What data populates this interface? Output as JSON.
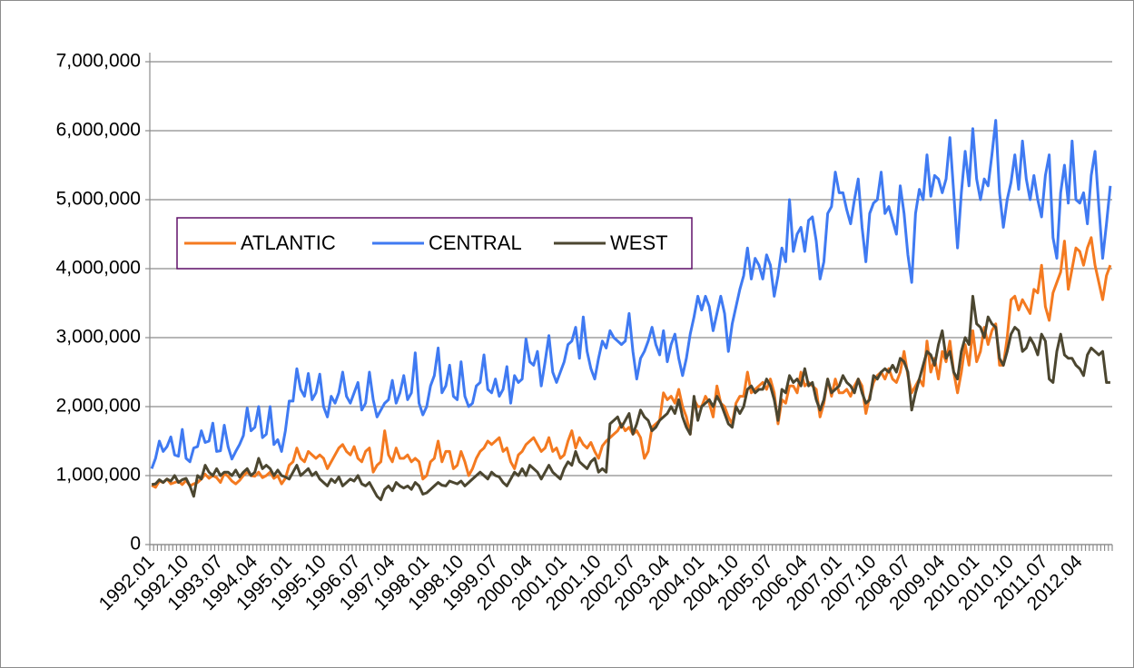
{
  "chart_data": {
    "type": "line",
    "categories": [
      "1992.01",
      null,
      null,
      null,
      null,
      null,
      null,
      null,
      null,
      "1992.10",
      null,
      null,
      null,
      null,
      null,
      null,
      null,
      null,
      "1993.07",
      null,
      null,
      null,
      null,
      null,
      null,
      null,
      null,
      "1994.04",
      null,
      null,
      null,
      null,
      null,
      null,
      null,
      null,
      "1995.01",
      null,
      null,
      null,
      null,
      null,
      null,
      null,
      null,
      "1995.10",
      null,
      null,
      null,
      null,
      null,
      null,
      null,
      null,
      "1996.07",
      null,
      null,
      null,
      null,
      null,
      null,
      null,
      null,
      "1997.04",
      null,
      null,
      null,
      null,
      null,
      null,
      null,
      null,
      "1998.01",
      null,
      null,
      null,
      null,
      null,
      null,
      null,
      null,
      "1998.10",
      null,
      null,
      null,
      null,
      null,
      null,
      null,
      null,
      "1999.07",
      null,
      null,
      null,
      null,
      null,
      null,
      null,
      null,
      "2000.04",
      null,
      null,
      null,
      null,
      null,
      null,
      null,
      null,
      "2001.01",
      null,
      null,
      null,
      null,
      null,
      null,
      null,
      null,
      "2001.10",
      null,
      null,
      null,
      null,
      null,
      null,
      null,
      null,
      "2002.07",
      null,
      null,
      null,
      null,
      null,
      null,
      null,
      null,
      "2003.04",
      null,
      null,
      null,
      null,
      null,
      null,
      null,
      null,
      "2004.01",
      null,
      null,
      null,
      null,
      null,
      null,
      null,
      null,
      "2004.10",
      null,
      null,
      null,
      null,
      null,
      null,
      null,
      null,
      "2005.07",
      null,
      null,
      null,
      null,
      null,
      null,
      null,
      null,
      "2006.04",
      null,
      null,
      null,
      null,
      null,
      null,
      null,
      null,
      "2007.01",
      null,
      null,
      null,
      null,
      null,
      null,
      null,
      null,
      "2007.10",
      null,
      null,
      null,
      null,
      null,
      null,
      null,
      null,
      "2008.07",
      null,
      null,
      null,
      null,
      null,
      null,
      null,
      null,
      "2009.04",
      null,
      null,
      null,
      null,
      null,
      null,
      null,
      null,
      "2010.01",
      null,
      null,
      null,
      null,
      null,
      null,
      null,
      null,
      "2010.10",
      null,
      null,
      null,
      null,
      null,
      null,
      null,
      null,
      "2011.07",
      null,
      null,
      null,
      null,
      null,
      null,
      null,
      null,
      "2012.04",
      null,
      null,
      null,
      null,
      null,
      null,
      null,
      null
    ],
    "series": [
      {
        "name": "ATLANTIC",
        "color": "#f47a20",
        "values": [
          860000,
          830000,
          920000,
          900000,
          950000,
          880000,
          900000,
          920000,
          870000,
          930000,
          850000,
          880000,
          900000,
          950000,
          1020000,
          960000,
          1000000,
          970000,
          900000,
          1030000,
          990000,
          920000,
          880000,
          930000,
          1000000,
          1050000,
          1000000,
          990000,
          1050000,
          970000,
          1000000,
          1050000,
          960000,
          1000000,
          880000,
          960000,
          1150000,
          1200000,
          1400000,
          1250000,
          1200000,
          1350000,
          1300000,
          1250000,
          1300000,
          1250000,
          1100000,
          1200000,
          1300000,
          1400000,
          1450000,
          1350000,
          1300000,
          1420000,
          1250000,
          1200000,
          1350000,
          1400000,
          1050000,
          1150000,
          1200000,
          1650000,
          1300000,
          1200000,
          1400000,
          1250000,
          1250000,
          1300000,
          1200000,
          1250000,
          1200000,
          950000,
          1000000,
          1200000,
          1250000,
          1500000,
          1200000,
          1350000,
          1350000,
          1100000,
          1150000,
          1350000,
          1200000,
          1000000,
          1100000,
          1250000,
          1350000,
          1400000,
          1500000,
          1450000,
          1500000,
          1550000,
          1350000,
          1400000,
          1200000,
          1100000,
          1300000,
          1350000,
          1450000,
          1500000,
          1550000,
          1450000,
          1350000,
          1400000,
          1550000,
          1350000,
          1400000,
          1250000,
          1300000,
          1500000,
          1650000,
          1400000,
          1550000,
          1450000,
          1400000,
          1480000,
          1350000,
          1250000,
          1430000,
          1500000,
          1550000,
          1600000,
          1650000,
          1750000,
          1650000,
          1700000,
          1600000,
          1650000,
          1550000,
          1250000,
          1350000,
          1700000,
          1750000,
          1800000,
          2200000,
          2100000,
          2150000,
          2050000,
          2250000,
          2000000,
          1850000,
          1600000,
          2100000,
          2000000,
          2000000,
          2150000,
          2050000,
          1850000,
          2300000,
          2050000,
          2000000,
          1850000,
          1750000,
          2050000,
          2150000,
          2150000,
          2500000,
          2200000,
          2250000,
          2300000,
          2350000,
          2250000,
          2400000,
          2200000,
          1750000,
          2100000,
          2050000,
          2300000,
          2300000,
          2200000,
          2500000,
          2300000,
          2350000,
          2300000,
          2250000,
          1850000,
          2050000,
          2400000,
          2150000,
          2400000,
          2200000,
          2200000,
          2250000,
          2150000,
          2300000,
          2400000,
          2300000,
          1900000,
          2150000,
          2350000,
          2450000,
          2500000,
          2400000,
          2550000,
          2400000,
          2350000,
          2500000,
          2800000,
          2450000,
          2200000,
          2300000,
          2400000,
          2300000,
          2950000,
          2500000,
          2700000,
          2400000,
          2800000,
          2650000,
          2950000,
          2500000,
          2200000,
          2500000,
          2900000,
          2600000,
          3100000,
          2650000,
          2800000,
          3150000,
          2900000,
          3100000,
          3200000,
          2600000,
          2600000,
          3000000,
          3550000,
          3600000,
          3400000,
          3550000,
          3450000,
          3350000,
          3700000,
          3650000,
          4050000,
          3450000,
          3250000,
          3650000,
          3800000,
          3950000,
          4400000,
          3700000,
          4000000,
          4300000,
          4250000,
          4050000,
          4300000,
          4450000,
          4050000,
          3800000,
          3550000,
          3900000,
          4050000
        ]
      },
      {
        "name": "CENTRAL",
        "color": "#3f7af2",
        "values": [
          1100000,
          1250000,
          1500000,
          1350000,
          1420000,
          1560000,
          1300000,
          1280000,
          1670000,
          1250000,
          1200000,
          1400000,
          1420000,
          1650000,
          1480000,
          1500000,
          1760000,
          1350000,
          1360000,
          1730000,
          1420000,
          1240000,
          1350000,
          1450000,
          1580000,
          1980000,
          1650000,
          1700000,
          2000000,
          1550000,
          1600000,
          2000000,
          1450000,
          1520000,
          1350000,
          1650000,
          2080000,
          2080000,
          2550000,
          2250000,
          2150000,
          2480000,
          2100000,
          2200000,
          2470000,
          2000000,
          1850000,
          2150000,
          2050000,
          2200000,
          2500000,
          2150000,
          2050000,
          2200000,
          2350000,
          1950000,
          2050000,
          2500000,
          2100000,
          1850000,
          1950000,
          2050000,
          2100000,
          2380000,
          2050000,
          2200000,
          2450000,
          2100000,
          2200000,
          2780000,
          2050000,
          1880000,
          2000000,
          2300000,
          2450000,
          2850000,
          2200000,
          2300000,
          2600000,
          2150000,
          2100000,
          2650000,
          2150000,
          2000000,
          2050000,
          2300000,
          2350000,
          2750000,
          2250000,
          2200000,
          2400000,
          2150000,
          2250000,
          2580000,
          2050000,
          2450000,
          2350000,
          2400000,
          2980000,
          2650000,
          2600000,
          2800000,
          2300000,
          2650000,
          3030000,
          2500000,
          2350000,
          2500000,
          2650000,
          2900000,
          2950000,
          3150000,
          2700000,
          3300000,
          2800000,
          2550000,
          2400000,
          2700000,
          2950000,
          2850000,
          3100000,
          3000000,
          2950000,
          2900000,
          2950000,
          3350000,
          2800000,
          2400000,
          2700000,
          2800000,
          2950000,
          3150000,
          2900000,
          2750000,
          3100000,
          2650000,
          2900000,
          3050000,
          2700000,
          2450000,
          2700000,
          3050000,
          3300000,
          3600000,
          3400000,
          3600000,
          3450000,
          3100000,
          3350000,
          3600000,
          3350000,
          2800000,
          3200000,
          3450000,
          3700000,
          3900000,
          4300000,
          3850000,
          4150000,
          4050000,
          3850000,
          4200000,
          4050000,
          3600000,
          3900000,
          4300000,
          4100000,
          5000000,
          4250000,
          4500000,
          4600000,
          4250000,
          4700000,
          4750000,
          4400000,
          3850000,
          4100000,
          4800000,
          4900000,
          5400000,
          5100000,
          5100000,
          4850000,
          4650000,
          5000000,
          5300000,
          4600000,
          4100000,
          4800000,
          4950000,
          5000000,
          5400000,
          4800000,
          4900000,
          4700000,
          4500000,
          5200000,
          4800000,
          4200000,
          3800000,
          4800000,
          5150000,
          5000000,
          5650000,
          5050000,
          5350000,
          5300000,
          5100000,
          5300000,
          5900000,
          5100000,
          4300000,
          5100000,
          5700000,
          5200000,
          6030000,
          5300000,
          5000000,
          5300000,
          5200000,
          5650000,
          6150000,
          5100000,
          4600000,
          5000000,
          5250000,
          5650000,
          5150000,
          5850000,
          5300000,
          5000000,
          5350000,
          5000000,
          4750000,
          5350000,
          5650000,
          4450000,
          4150000,
          5100000,
          5500000,
          4950000,
          5850000,
          5000000,
          4950000,
          5100000,
          4650000,
          5350000,
          5700000,
          4900000,
          4150000,
          4650000,
          5200000
        ]
      },
      {
        "name": "WEST",
        "color": "#4b4630",
        "values": [
          870000,
          880000,
          940000,
          900000,
          950000,
          920000,
          1000000,
          900000,
          940000,
          960000,
          850000,
          700000,
          1000000,
          950000,
          1150000,
          1050000,
          1000000,
          1100000,
          1000000,
          1050000,
          1050000,
          1000000,
          1080000,
          980000,
          1050000,
          1100000,
          1000000,
          1050000,
          1250000,
          1100000,
          1150000,
          1100000,
          1000000,
          1080000,
          1000000,
          980000,
          950000,
          1050000,
          1150000,
          1000000,
          1050000,
          1100000,
          1000000,
          1050000,
          950000,
          900000,
          850000,
          950000,
          900000,
          980000,
          850000,
          900000,
          950000,
          920000,
          1000000,
          880000,
          850000,
          900000,
          800000,
          700000,
          650000,
          800000,
          850000,
          780000,
          900000,
          850000,
          820000,
          850000,
          800000,
          900000,
          850000,
          730000,
          750000,
          800000,
          850000,
          900000,
          860000,
          850000,
          920000,
          900000,
          880000,
          920000,
          850000,
          900000,
          950000,
          1000000,
          1050000,
          1000000,
          950000,
          1050000,
          1000000,
          980000,
          900000,
          850000,
          950000,
          1050000,
          1000000,
          1100000,
          1000000,
          1150000,
          1100000,
          1050000,
          950000,
          1050000,
          1150000,
          1050000,
          1000000,
          950000,
          1100000,
          1200000,
          1150000,
          1350000,
          1200000,
          1150000,
          1100000,
          1200000,
          1250000,
          1050000,
          1100000,
          1050000,
          1750000,
          1800000,
          1850000,
          1700000,
          1800000,
          1900000,
          1600000,
          1750000,
          1950000,
          1850000,
          1800000,
          1650000,
          1700000,
          1800000,
          1850000,
          1900000,
          2000000,
          1900000,
          2100000,
          1850000,
          1700000,
          1600000,
          2150000,
          1800000,
          2000000,
          2050000,
          2100000,
          2000000,
          2150000,
          2050000,
          1900000,
          1750000,
          1700000,
          2000000,
          1900000,
          2000000,
          2250000,
          2300000,
          2200000,
          2250000,
          2250000,
          2400000,
          2300000,
          2100000,
          1800000,
          2250000,
          2200000,
          2450000,
          2350000,
          2400000,
          2300000,
          2550000,
          2300000,
          2350000,
          2100000,
          1950000,
          2100000,
          2400000,
          2200000,
          2250000,
          2300000,
          2450000,
          2350000,
          2300000,
          2200000,
          2400000,
          2200000,
          2050000,
          2100000,
          2450000,
          2400000,
          2500000,
          2550000,
          2500000,
          2600000,
          2500000,
          2700000,
          2650000,
          2500000,
          1950000,
          2200000,
          2400000,
          2600000,
          2800000,
          2750000,
          2600000,
          2900000,
          3100000,
          2700000,
          2800000,
          2500000,
          2400000,
          2800000,
          3000000,
          2900000,
          3600000,
          3200000,
          3150000,
          3000000,
          3300000,
          3200000,
          3150000,
          2700000,
          2600000,
          2800000,
          3050000,
          3150000,
          3100000,
          2800000,
          2850000,
          3000000,
          2900000,
          2750000,
          3050000,
          2950000,
          2400000,
          2350000,
          2800000,
          3050000,
          2750000,
          2700000,
          2700000,
          2600000,
          2550000,
          2450000,
          2750000,
          2850000,
          2800000,
          2750000,
          2800000,
          2350000,
          2350000
        ]
      }
    ],
    "ylim": [
      0,
      7000000
    ],
    "yticks": [
      0,
      {
        "value": 1000000,
        "label": "1,000,000"
      },
      {
        "value": 2000000,
        "label": "2,000,000"
      },
      {
        "value": 3000000,
        "label": "3,000,000"
      },
      {
        "value": 4000000,
        "label": "4,000,000"
      },
      {
        "value": 5000000,
        "label": "5,000,000"
      },
      {
        "value": 6000000,
        "label": "6,000,000"
      },
      {
        "value": 7000000,
        "label": "7,000,000"
      }
    ],
    "grid": true,
    "legend": "left"
  }
}
